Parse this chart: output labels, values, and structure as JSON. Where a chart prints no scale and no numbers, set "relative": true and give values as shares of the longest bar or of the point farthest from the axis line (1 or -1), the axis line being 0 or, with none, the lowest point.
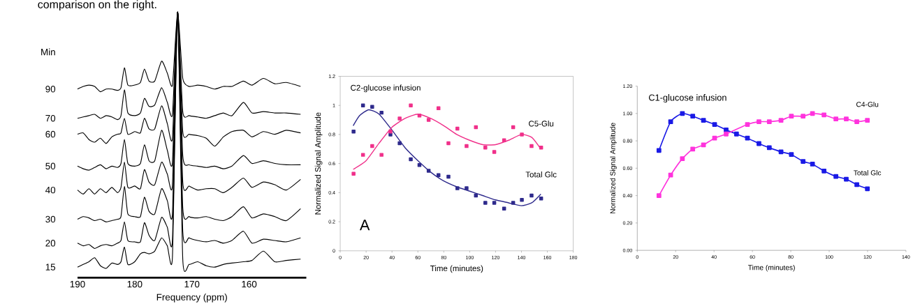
{
  "chart_data": [
    {
      "type": "line",
      "relative": true,
      "xlabel": "Frequency (ppm)",
      "ylabel": "Min",
      "annotations": [
        "comparison on the right."
      ],
      "xlim": [
        190,
        150
      ],
      "xticks": [
        190,
        180,
        170,
        160
      ],
      "x": [
        190,
        189,
        188,
        187,
        186,
        185,
        184,
        183,
        182.4,
        181.8,
        181.2,
        180,
        179,
        178.3,
        177.5,
        176.5,
        175.3,
        174.3,
        173.4,
        172.5,
        171.6,
        170.5,
        169,
        167.5,
        166,
        164.5,
        163,
        161,
        159.5,
        157.5,
        155.5,
        153.5,
        151
      ],
      "series": [
        {
          "name": "15",
          "color": "#000000",
          "values": [
            0.04,
            0.05,
            0.06,
            0.075,
            0.045,
            0.035,
            0.055,
            0.05,
            0.06,
            0.115,
            0.05,
            0.06,
            0.09,
            0.095,
            0.09,
            0.1,
            0.15,
            0.12,
            0.08,
            1,
            0.07,
            0.05,
            0.06,
            0.045,
            0.04,
            0.05,
            0.055,
            0.06,
            0.065,
            0.1,
            0.06,
            0.065,
            0.07
          ]
        },
        {
          "name": "20",
          "color": "#000000",
          "values": [
            0.13,
            0.12,
            0.125,
            0.11,
            0.12,
            0.125,
            0.12,
            0.13,
            0.14,
            0.21,
            0.14,
            0.135,
            0.135,
            0.207,
            0.16,
            0.14,
            0.227,
            0.19,
            0.143,
            1,
            0.175,
            0.15,
            0.14,
            0.135,
            0.14,
            0.13,
            0.14,
            0.175,
            0.13,
            0.145,
            0.14,
            0.135,
            0.15
          ]
        },
        {
          "name": "30",
          "color": "#000000",
          "values": [
            0.22,
            0.23,
            0.225,
            0.215,
            0.22,
            0.21,
            0.215,
            0.22,
            0.23,
            0.343,
            0.24,
            0.23,
            0.23,
            0.303,
            0.25,
            0.24,
            0.335,
            0.29,
            0.243,
            1,
            0.263,
            0.23,
            0.225,
            0.23,
            0.22,
            0.215,
            0.23,
            0.267,
            0.225,
            0.24,
            0.23,
            0.215,
            0.26
          ]
        },
        {
          "name": "40",
          "color": "#000000",
          "values": [
            0.33,
            0.315,
            0.335,
            0.315,
            0.335,
            0.32,
            0.34,
            0.32,
            0.34,
            0.435,
            0.34,
            0.345,
            0.335,
            0.407,
            0.36,
            0.35,
            0.435,
            0.39,
            0.35,
            1,
            0.36,
            0.345,
            0.33,
            0.335,
            0.335,
            0.32,
            0.34,
            0.375,
            0.34,
            0.36,
            0.35,
            0.33,
            0.37
          ]
        },
        {
          "name": "50",
          "color": "#000000",
          "values": [
            0.42,
            0.41,
            0.405,
            0.415,
            0.425,
            0.41,
            0.42,
            0.415,
            0.43,
            0.52,
            0.43,
            0.42,
            0.43,
            0.5,
            0.44,
            0.44,
            0.555,
            0.48,
            0.435,
            1,
            0.46,
            0.425,
            0.42,
            0.415,
            0.42,
            0.41,
            0.42,
            0.46,
            0.43,
            0.44,
            0.43,
            0.425,
            0.425
          ]
        },
        {
          "name": "60",
          "color": "#000000",
          "values": [
            0.54,
            0.545,
            0.52,
            0.51,
            0.525,
            0.505,
            0.53,
            0.54,
            0.545,
            0.6,
            0.54,
            0.55,
            0.545,
            0.6,
            0.56,
            0.56,
            0.647,
            0.58,
            0.525,
            1,
            0.55,
            0.54,
            0.535,
            0.525,
            0.495,
            0.53,
            0.55,
            0.555,
            0.53,
            0.55,
            0.54,
            0.555,
            0.545
          ]
        },
        {
          "name": "70",
          "color": "#000000",
          "values": [
            0.6,
            0.605,
            0.61,
            0.615,
            0.6,
            0.61,
            0.605,
            0.595,
            0.61,
            0.707,
            0.62,
            0.61,
            0.62,
            0.675,
            0.645,
            0.65,
            0.715,
            0.66,
            0.615,
            1,
            0.625,
            0.61,
            0.605,
            0.6,
            0.61,
            0.62,
            0.61,
            0.66,
            0.62,
            0.625,
            0.62,
            0.62,
            0.615
          ]
        },
        {
          "name": "90",
          "color": "#000000",
          "values": [
            0.71,
            0.72,
            0.725,
            0.72,
            0.7,
            0.71,
            0.71,
            0.705,
            0.715,
            0.79,
            0.725,
            0.725,
            0.735,
            0.785,
            0.74,
            0.74,
            0.815,
            0.77,
            0.725,
            1,
            0.75,
            0.72,
            0.725,
            0.72,
            0.71,
            0.72,
            0.72,
            0.74,
            0.725,
            0.75,
            0.73,
            0.735,
            0.72
          ]
        }
      ]
    },
    {
      "type": "scatter",
      "title": "C2-glucose infusion",
      "xlabel": "Time (minutes)",
      "ylabel": "Normalized Signal Amplitude",
      "annotations": [
        "A"
      ],
      "xlim": [
        0,
        180
      ],
      "xticks": [
        0,
        20,
        40,
        60,
        80,
        100,
        120,
        140,
        160,
        180
      ],
      "ylim": [
        0,
        1.2
      ],
      "yticks": [
        0,
        0.2,
        0.4,
        0.6,
        0.8,
        1,
        1.2
      ],
      "x": [
        10.3,
        17.6,
        24.7,
        31.9,
        38.8,
        45.9,
        54.5,
        61.2,
        68.3,
        75.9,
        83.6,
        90.5,
        97.6,
        104.8,
        112.1,
        119,
        126.6,
        133.6,
        140.3,
        147.8,
        155.2
      ],
      "series": [
        {
          "name": "Total Glc",
          "color": "#2e2a8c",
          "marker": "square",
          "values": [
            0.82,
            1.0,
            0.99,
            0.95,
            0.8,
            0.74,
            0.63,
            0.59,
            0.55,
            0.52,
            0.51,
            0.43,
            0.43,
            0.38,
            0.33,
            0.33,
            0.29,
            0.33,
            0.35,
            0.38,
            0.36
          ]
        },
        {
          "name": "C5-Glu",
          "color": "#f0308a",
          "marker": "square",
          "values": [
            0.53,
            0.66,
            0.72,
            0.66,
            0.82,
            0.91,
            1.0,
            0.93,
            0.9,
            0.98,
            0.74,
            0.84,
            0.72,
            0.85,
            0.71,
            0.68,
            0.76,
            0.85,
            0.8,
            0.72,
            0.71
          ]
        },
        {
          "type": "line",
          "color": "#2e2a8c",
          "marker": "none",
          "x": [
            10,
            15,
            22,
            30,
            40,
            50,
            60,
            70,
            80,
            90,
            100,
            110,
            120,
            130,
            140,
            148,
            155
          ],
          "values": [
            0.86,
            0.93,
            0.97,
            0.94,
            0.83,
            0.71,
            0.62,
            0.54,
            0.48,
            0.44,
            0.41,
            0.38,
            0.35,
            0.33,
            0.31,
            0.33,
            0.39
          ]
        },
        {
          "type": "line",
          "color": "#f0308a",
          "marker": "none",
          "x": [
            10,
            20,
            30,
            40,
            50,
            60,
            70,
            80,
            90,
            100,
            110,
            120,
            130,
            140,
            148,
            155
          ],
          "values": [
            0.56,
            0.62,
            0.74,
            0.85,
            0.91,
            0.94,
            0.91,
            0.86,
            0.8,
            0.76,
            0.73,
            0.73,
            0.76,
            0.8,
            0.78,
            0.7
          ]
        }
      ]
    },
    {
      "type": "line",
      "title": "C1-glucose infusion",
      "xlabel": "Time (minutes)",
      "ylabel": "Normalized Signal Amplitude",
      "marker": "square",
      "xlim": [
        0,
        140
      ],
      "xticks": [
        0,
        20,
        40,
        60,
        80,
        100,
        120,
        140
      ],
      "ylim": [
        0,
        1.2
      ],
      "yticks": [
        {
          "value": 0,
          "label": "0.00"
        },
        {
          "value": 0.2,
          "label": "0.20"
        },
        {
          "value": 0.4,
          "label": "0.40"
        },
        {
          "value": 0.6,
          "label": "0.60"
        },
        {
          "value": 0.8,
          "label": "0.80"
        },
        {
          "value": 1,
          "label": "1.00"
        },
        {
          "value": 1.2,
          "label": "1.20"
        }
      ],
      "series": [
        {
          "name": "Total Glc",
          "color": "#1a1ae6",
          "x": [
            11.3,
            17.4,
            23.5,
            28.9,
            34.5,
            40.3,
            46.3,
            51.7,
            57.4,
            63.4,
            68.8,
            74.9,
            80.3,
            86.4,
            91.3,
            97.3,
            103.5,
            108.9,
            114.4,
            119.9
          ],
          "values": [
            0.73,
            0.94,
            1.0,
            0.98,
            0.95,
            0.92,
            0.88,
            0.85,
            0.82,
            0.78,
            0.75,
            0.72,
            0.7,
            0.65,
            0.63,
            0.58,
            0.54,
            0.52,
            0.48,
            0.45
          ]
        },
        {
          "name": "C4-Glu",
          "color": "#ff33dd",
          "x": [
            11.3,
            17.4,
            23.5,
            28.9,
            34.5,
            40.3,
            46.3,
            57.4,
            63.4,
            68.8,
            74.9,
            80.3,
            86.4,
            91.3,
            97.3,
            103.5,
            108.9,
            114.4,
            119.9
          ],
          "values": [
            0.4,
            0.55,
            0.67,
            0.74,
            0.77,
            0.82,
            0.85,
            0.92,
            0.94,
            0.94,
            0.95,
            0.98,
            0.98,
            1.0,
            0.99,
            0.96,
            0.96,
            0.94,
            0.95
          ]
        }
      ]
    }
  ]
}
